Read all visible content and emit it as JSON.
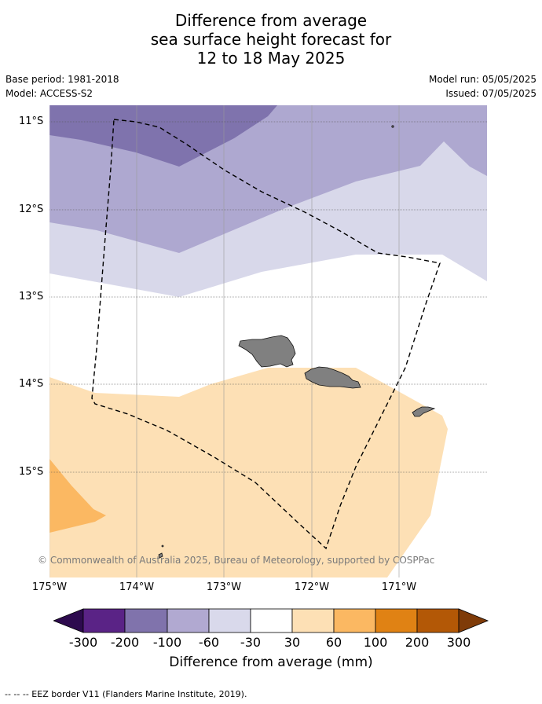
{
  "title": {
    "line1": "Difference from average",
    "line2": "sea surface height forecast for",
    "line3": "12 to 18 May 2025"
  },
  "meta": {
    "base_period": "Base period: 1981-2018",
    "model": "Model: ACCESS-S2",
    "model_run": "Model run: 05/05/2025",
    "issued": "Issued: 07/05/2025"
  },
  "map": {
    "lat_ticks": [
      "11°S",
      "12°S",
      "13°S",
      "14°S",
      "15°S"
    ],
    "lon_ticks": [
      "175°W",
      "174°W",
      "173°W",
      "172°W",
      "171°W"
    ],
    "lat_values": [
      -11,
      -12,
      -13,
      -14,
      -15
    ],
    "lon_values": [
      -175,
      -174,
      -173,
      -172,
      -171
    ],
    "lon_range": [
      -175,
      -170
    ],
    "lat_range": [
      -16.2,
      -10.8
    ],
    "copyright": "© Commonwealth of Australia 2025, Bureau of Meteorology, supported by COSPPac",
    "colors": {
      "c_-200_-100": "#7f73ad",
      "c_-100_-60": "#aea8d0",
      "c_-60_-30": "#d8d8ea",
      "c_30_60": "#fde0b5",
      "c_60_100": "#fbb862",
      "land": "#808080",
      "grid": "#aaaaaa"
    }
  },
  "colorbar": {
    "ticks": [
      "-300",
      "-200",
      "-100",
      "-60",
      "-30",
      "30",
      "60",
      "100",
      "200",
      "300"
    ],
    "colors": [
      "#2d0a4e",
      "#5a2386",
      "#8073ac",
      "#b1a9d1",
      "#d9d9eb",
      "#ffffff",
      "#fde0b5",
      "#fbb862",
      "#e08214",
      "#b35806",
      "#7f3b08"
    ],
    "label": "Difference from average (mm)"
  },
  "footer": "--  --  -- EEZ border V11 (Flanders Marine Institute, 2019)."
}
